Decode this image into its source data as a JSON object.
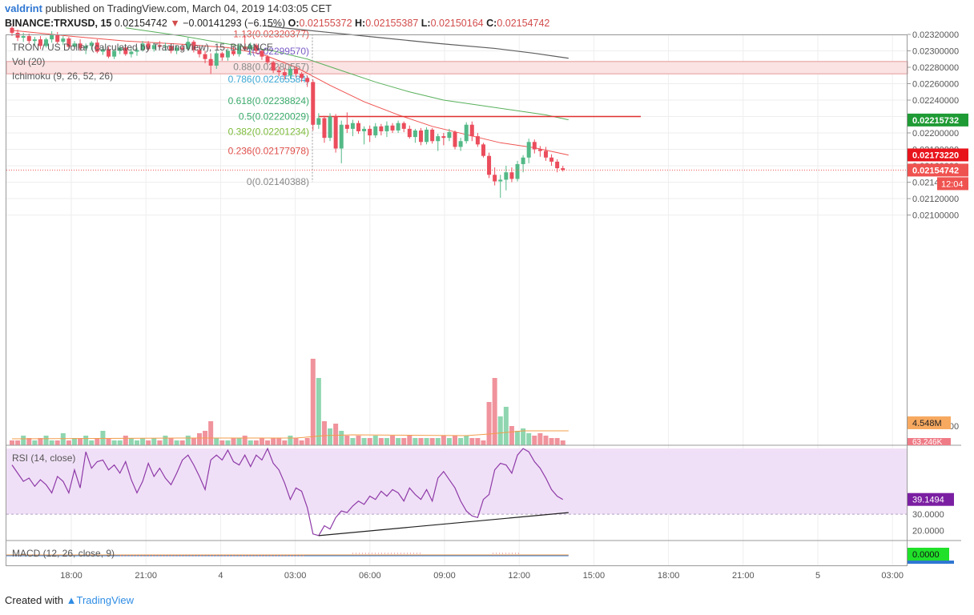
{
  "header": {
    "author": "valdrint",
    "published_text": "published on TradingView.com, March 04, 2019 14:03:05 CET",
    "symbol_label": "BINANCE:TRXUSD, 15",
    "last_price": "0.02154742",
    "change": "−0.00141293 (−6.15%)",
    "open_label": "O:",
    "open_value": "0.02155372",
    "high_label": "H:",
    "high_value": "0.02155387",
    "low_label": "L:",
    "low_value": "0.02150164",
    "close_label": "C:",
    "close_value": "0.02154742"
  },
  "legend": {
    "series_title": "TRON / US Dollar (calculated by TradingView), 15, BINANCE",
    "volume": "Vol (20)",
    "ichimoku": "Ichimoku (9, 26, 52, 26)",
    "rsi": "RSI (14, close)",
    "macd": "MACD (12, 26, close, 9)"
  },
  "footer": {
    "created_with": "Created with",
    "brand": "TradingView"
  },
  "colors": {
    "up": "#53b987",
    "down": "#eb4d5c",
    "grid": "#eeeeee",
    "rsi_band": "#f0e0f7"
  },
  "chart_data": [
    {
      "type": "candlestick",
      "title": "TRON / US Dollar (calculated by TradingView), 15, BINANCE",
      "ylim": [
        0.0207,
        0.02333
      ],
      "y_ticks": [
        "0.02320000",
        "0.02300000",
        "0.02280000",
        "0.02260000",
        "0.02240000",
        "0.02220000",
        "0.02200000",
        "0.02180000",
        "0.02160000",
        "0.02140000",
        "0.02120000",
        "0.02100000"
      ],
      "x_ticks": [
        "18:00",
        "21:00",
        "4",
        "03:00",
        "06:00",
        "09:00",
        "12:00",
        "15:00",
        "18:00",
        "21:00",
        "5",
        "03:00"
      ],
      "price_badges": [
        {
          "value": 0.02215732,
          "label": "0.02215732",
          "color": "#1f9b35"
        },
        {
          "value": 0.0217322,
          "label": "0.02173220",
          "color": "#e8141c"
        },
        {
          "value": 0.02154742,
          "label": "0.02154742",
          "color": "#ef5350"
        }
      ],
      "countdown": "12:04",
      "resistance_zone": [
        0.02272,
        0.02287
      ],
      "horizontal_line": 0.0222,
      "fibonacci": [
        {
          "ratio": "1.13",
          "price": 0.02320377,
          "label": "1.13(0.02320377)",
          "color": "#e0504b"
        },
        {
          "ratio": "1",
          "price": 0.0229957,
          "label": "1(0.02299570)",
          "color": "#7b5cc7"
        },
        {
          "ratio": "0.88",
          "price": 0.02280557,
          "label": "0.88(0.02280557)",
          "color": "#888888"
        },
        {
          "ratio": "0.786",
          "price": 0.02265584,
          "label": "0.786(0.02265584)",
          "color": "#3aa6d3"
        },
        {
          "ratio": "0.618",
          "price": 0.02238824,
          "label": "0.618(0.02238824)",
          "color": "#3aaa6b"
        },
        {
          "ratio": "0.5",
          "price": 0.02220029,
          "label": "0.5(0.02220029)",
          "color": "#3aaa6b"
        },
        {
          "ratio": "0.382",
          "price": 0.02201234,
          "label": "0.382(0.02201234)",
          "color": "#7dbb3a"
        },
        {
          "ratio": "0.236",
          "price": 0.02177978,
          "label": "0.236(0.02177978)",
          "color": "#e0504b"
        },
        {
          "ratio": "0",
          "price": 0.02140388,
          "label": "0(0.02140388)",
          "color": "#888888"
        }
      ],
      "candles": [
        [
          0.02328,
          0.0233,
          0.02318,
          0.02322
        ],
        [
          0.02322,
          0.02326,
          0.02312,
          0.02316
        ],
        [
          0.02316,
          0.02322,
          0.02311,
          0.02318
        ],
        [
          0.02318,
          0.02321,
          0.02309,
          0.02312
        ],
        [
          0.02312,
          0.02317,
          0.02306,
          0.02314
        ],
        [
          0.02314,
          0.02318,
          0.02302,
          0.02306
        ],
        [
          0.02306,
          0.02316,
          0.02304,
          0.02314
        ],
        [
          0.02314,
          0.02324,
          0.0231,
          0.0232
        ],
        [
          0.0232,
          0.02323,
          0.02309,
          0.02311
        ],
        [
          0.02311,
          0.02318,
          0.02307,
          0.02315
        ],
        [
          0.02315,
          0.02317,
          0.02303,
          0.02305
        ],
        [
          0.02305,
          0.02312,
          0.02302,
          0.02309
        ],
        [
          0.02309,
          0.02314,
          0.023,
          0.02303
        ],
        [
          0.02303,
          0.02309,
          0.02296,
          0.02306
        ],
        [
          0.02306,
          0.02312,
          0.02301,
          0.0231
        ],
        [
          0.0231,
          0.02314,
          0.02297,
          0.02299
        ],
        [
          0.02299,
          0.02306,
          0.02295,
          0.02302
        ],
        [
          0.02302,
          0.02305,
          0.02291,
          0.02293
        ],
        [
          0.02293,
          0.02302,
          0.0229,
          0.023
        ],
        [
          0.023,
          0.02306,
          0.02296,
          0.02304
        ],
        [
          0.02304,
          0.02307,
          0.02294,
          0.02296
        ],
        [
          0.02296,
          0.02303,
          0.02292,
          0.02299
        ],
        [
          0.02299,
          0.02304,
          0.02294,
          0.02301
        ],
        [
          0.02301,
          0.02312,
          0.02299,
          0.02309
        ],
        [
          0.02309,
          0.02312,
          0.023,
          0.02302
        ],
        [
          0.02302,
          0.0231,
          0.02299,
          0.02307
        ],
        [
          0.02307,
          0.02312,
          0.02303,
          0.02305
        ],
        [
          0.02305,
          0.0231,
          0.023,
          0.02306
        ],
        [
          0.02306,
          0.02309,
          0.02297,
          0.023
        ],
        [
          0.023,
          0.02307,
          0.02296,
          0.02304
        ],
        [
          0.02304,
          0.02308,
          0.023,
          0.02302
        ],
        [
          0.02302,
          0.02316,
          0.023,
          0.02311
        ],
        [
          0.02311,
          0.02313,
          0.02298,
          0.02301
        ],
        [
          0.02301,
          0.02305,
          0.02292,
          0.02296
        ],
        [
          0.02296,
          0.023,
          0.02285,
          0.0229
        ],
        [
          0.0229,
          0.02297,
          0.02272,
          0.02282
        ],
        [
          0.02282,
          0.023,
          0.02278,
          0.02297
        ],
        [
          0.02297,
          0.02299,
          0.02288,
          0.02292
        ],
        [
          0.02292,
          0.02303,
          0.02288,
          0.023
        ],
        [
          0.023,
          0.02306,
          0.02294,
          0.02296
        ],
        [
          0.02296,
          0.02309,
          0.02293,
          0.02305
        ],
        [
          0.02305,
          0.02319,
          0.023,
          0.02302
        ],
        [
          0.02302,
          0.0231,
          0.02294,
          0.02307
        ],
        [
          0.02307,
          0.02309,
          0.02298,
          0.023
        ],
        [
          0.023,
          0.02302,
          0.02289,
          0.02293
        ],
        [
          0.02293,
          0.02295,
          0.02284,
          0.02286
        ],
        [
          0.02286,
          0.02288,
          0.02273,
          0.02276
        ],
        [
          0.02276,
          0.02281,
          0.02269,
          0.02274
        ],
        [
          0.02274,
          0.02279,
          0.02265,
          0.0227
        ],
        [
          0.0227,
          0.02281,
          0.02266,
          0.02278
        ],
        [
          0.02278,
          0.0228,
          0.02268,
          0.02272
        ],
        [
          0.02272,
          0.02274,
          0.02262,
          0.02267
        ],
        [
          0.02267,
          0.0227,
          0.02256,
          0.02262
        ],
        [
          0.02262,
          0.02265,
          0.02203,
          0.0221
        ],
        [
          0.0221,
          0.02224,
          0.02205,
          0.02218
        ],
        [
          0.02218,
          0.02221,
          0.02188,
          0.02194
        ],
        [
          0.02194,
          0.02224,
          0.0219,
          0.0222
        ],
        [
          0.0222,
          0.02223,
          0.02176,
          0.02181
        ],
        [
          0.02181,
          0.02215,
          0.02163,
          0.0221
        ],
        [
          0.0221,
          0.02225,
          0.022,
          0.02205
        ],
        [
          0.02205,
          0.02216,
          0.02196,
          0.02212
        ],
        [
          0.02212,
          0.02215,
          0.02199,
          0.02202
        ],
        [
          0.02202,
          0.02208,
          0.02186,
          0.02205
        ],
        [
          0.02205,
          0.02209,
          0.02189,
          0.02197
        ],
        [
          0.02197,
          0.02212,
          0.02194,
          0.02208
        ],
        [
          0.02208,
          0.02211,
          0.02197,
          0.02202
        ],
        [
          0.02202,
          0.02214,
          0.02195,
          0.02209
        ],
        [
          0.02209,
          0.02212,
          0.022,
          0.02203
        ],
        [
          0.02203,
          0.02215,
          0.022,
          0.02212
        ],
        [
          0.02212,
          0.02214,
          0.02201,
          0.02205
        ],
        [
          0.02205,
          0.02209,
          0.02193,
          0.02195
        ],
        [
          0.02195,
          0.02205,
          0.02188,
          0.02203
        ],
        [
          0.02203,
          0.02206,
          0.02185,
          0.02189
        ],
        [
          0.02189,
          0.02207,
          0.02186,
          0.02204
        ],
        [
          0.02204,
          0.02206,
          0.02187,
          0.0219
        ],
        [
          0.0219,
          0.02199,
          0.02178,
          0.02196
        ],
        [
          0.02196,
          0.022,
          0.02185,
          0.02194
        ],
        [
          0.02194,
          0.02205,
          0.0219,
          0.02201
        ],
        [
          0.02201,
          0.02203,
          0.0218,
          0.02183
        ],
        [
          0.02183,
          0.02194,
          0.02178,
          0.0219
        ],
        [
          0.0219,
          0.02213,
          0.02187,
          0.0221
        ],
        [
          0.0221,
          0.02214,
          0.0219,
          0.02196
        ],
        [
          0.02196,
          0.022,
          0.02183,
          0.02186
        ],
        [
          0.02186,
          0.02188,
          0.0217,
          0.02172
        ],
        [
          0.02172,
          0.02176,
          0.02145,
          0.02149
        ],
        [
          0.02149,
          0.02158,
          0.02136,
          0.02141
        ],
        [
          0.02141,
          0.02149,
          0.02121,
          0.02143
        ],
        [
          0.02143,
          0.0216,
          0.0213,
          0.02152
        ],
        [
          0.02152,
          0.02158,
          0.0214,
          0.02144
        ],
        [
          0.02144,
          0.02166,
          0.02141,
          0.02162
        ],
        [
          0.02162,
          0.02173,
          0.02152,
          0.0217
        ],
        [
          0.0217,
          0.02193,
          0.02163,
          0.02189
        ],
        [
          0.02189,
          0.02192,
          0.02175,
          0.0218
        ],
        [
          0.0218,
          0.02184,
          0.02171,
          0.02178
        ],
        [
          0.02178,
          0.02183,
          0.02166,
          0.0217
        ],
        [
          0.0217,
          0.02174,
          0.0216,
          0.02165
        ],
        [
          0.02165,
          0.02168,
          0.02152,
          0.02157
        ],
        [
          0.02157,
          0.0216,
          0.02153,
          0.02155
        ]
      ],
      "ma_fast": [
        [
          0,
          0.02325
        ],
        [
          10,
          0.02318
        ],
        [
          20,
          0.02312
        ],
        [
          30,
          0.02308
        ],
        [
          38,
          0.02304
        ],
        [
          44,
          0.02296
        ],
        [
          50,
          0.0228
        ],
        [
          56,
          0.02258
        ],
        [
          62,
          0.02238
        ],
        [
          68,
          0.02222
        ],
        [
          74,
          0.02208
        ],
        [
          80,
          0.02198
        ],
        [
          86,
          0.02188
        ],
        [
          92,
          0.02182
        ],
        [
          98,
          0.02173
        ]
      ],
      "ma_mid": [
        [
          20,
          0.02328
        ],
        [
          30,
          0.02318
        ],
        [
          40,
          0.02306
        ],
        [
          46,
          0.023
        ],
        [
          52,
          0.0229
        ],
        [
          58,
          0.02276
        ],
        [
          64,
          0.02262
        ],
        [
          70,
          0.0225
        ],
        [
          76,
          0.0224
        ],
        [
          82,
          0.02234
        ],
        [
          88,
          0.02228
        ],
        [
          94,
          0.02222
        ],
        [
          98,
          0.02216
        ]
      ],
      "ma_slow": [
        [
          45,
          0.0233
        ],
        [
          55,
          0.02323
        ],
        [
          65,
          0.02316
        ],
        [
          75,
          0.02309
        ],
        [
          85,
          0.02303
        ],
        [
          92,
          0.02297
        ],
        [
          98,
          0.02291
        ]
      ]
    },
    {
      "type": "bar",
      "title": "Vol (20)",
      "labels": [
        "4.548M",
        "63.246K"
      ],
      "volumes": [
        2,
        2,
        4,
        3,
        2,
        3,
        4,
        2,
        2,
        5,
        2,
        3,
        3,
        4,
        2,
        3,
        6,
        3,
        2,
        2,
        4,
        3,
        2,
        3,
        2,
        3,
        2,
        4,
        3,
        2,
        2,
        4,
        3,
        5,
        6,
        10,
        3,
        2,
        2,
        3,
        3,
        4,
        2,
        2,
        3,
        2,
        3,
        3,
        2,
        4,
        3,
        2,
        3,
        36,
        28,
        10,
        7,
        9,
        6,
        4,
        3,
        4,
        3,
        3,
        4,
        3,
        3,
        4,
        3,
        3,
        4,
        3,
        3,
        3,
        3,
        3,
        4,
        3,
        4,
        3,
        4,
        3,
        3,
        2,
        18,
        28,
        12,
        16,
        8,
        6,
        7,
        5,
        4,
        5,
        4,
        3,
        3,
        2
      ],
      "volume_ma_label": "4.548M"
    },
    {
      "type": "line",
      "title": "RSI (14, close)",
      "ylim": [
        14,
        72
      ],
      "y_ticks": [
        "30.0000",
        "20.0000"
      ],
      "band": [
        30,
        70
      ],
      "value_label": "39.1494",
      "values": [
        60,
        55,
        50,
        52,
        47,
        51,
        48,
        43,
        53,
        50,
        43,
        57,
        46,
        68,
        58,
        62,
        63,
        57,
        60,
        55,
        62,
        51,
        43,
        50,
        61,
        53,
        58,
        52,
        48,
        55,
        63,
        66,
        60,
        53,
        45,
        63,
        66,
        63,
        69,
        62,
        60,
        66,
        59,
        66,
        63,
        70,
        61,
        57,
        49,
        39,
        46,
        44,
        34,
        18,
        17,
        23,
        21,
        28,
        32,
        31,
        35,
        38,
        36,
        41,
        39,
        44,
        41,
        45,
        43,
        38,
        46,
        42,
        39,
        45,
        38,
        52,
        56,
        51,
        46,
        38,
        32,
        29,
        28,
        39,
        42,
        57,
        61,
        60,
        55,
        66,
        70,
        68,
        62,
        58,
        52,
        45,
        41,
        39
      ],
      "trendline": [
        [
          54,
          17
        ],
        [
          98,
          31
        ]
      ]
    },
    {
      "type": "line",
      "title": "MACD (12, 26, close, 9)",
      "value_label": "0.0000"
    }
  ]
}
